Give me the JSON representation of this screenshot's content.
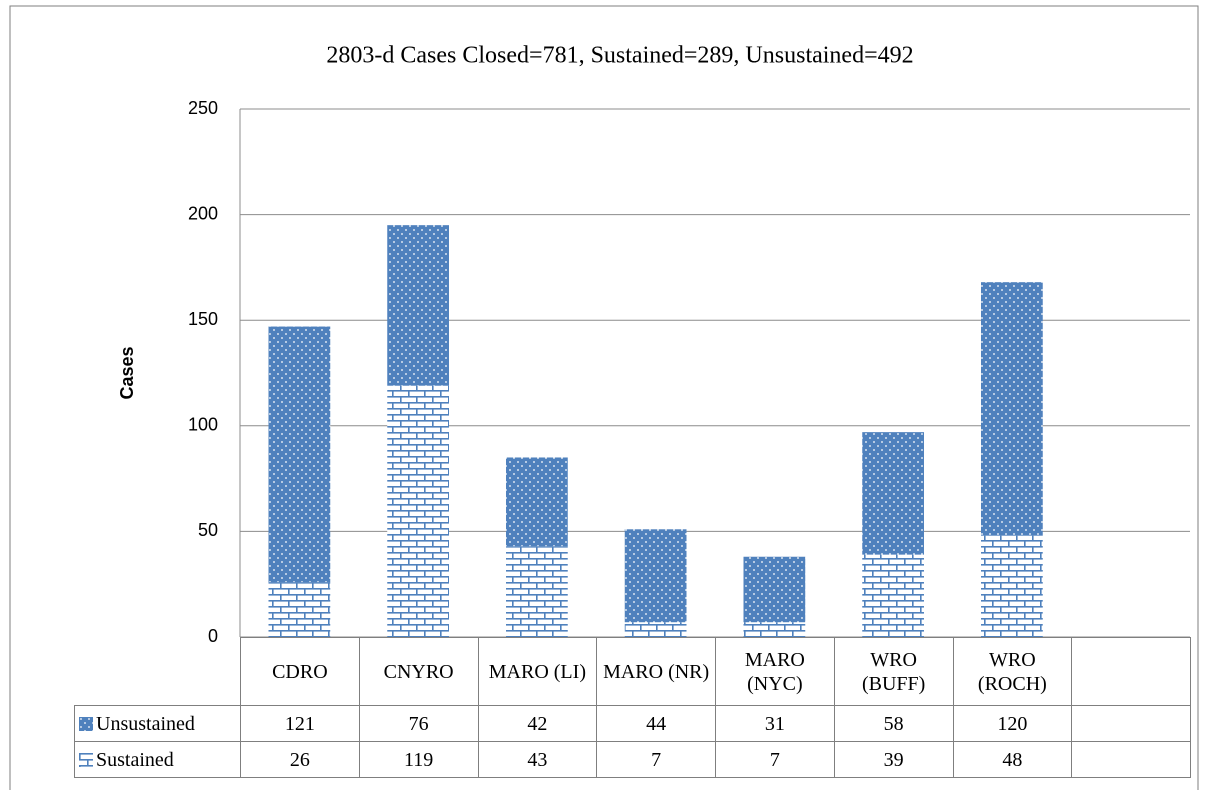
{
  "chart_data": {
    "type": "bar",
    "stacked": true,
    "title": "2803-d Cases Closed=781, Sustained=289, Unsustained=492",
    "y_label": "Cases",
    "categories": [
      "CDRO",
      "CNYRO",
      "MARO (LI)",
      "MARO (NR)",
      "MARO (NYC)",
      "WRO (BUFF)",
      "WRO (ROCH)",
      null
    ],
    "series": [
      {
        "name": "Unsustained",
        "color": "#4f81bd",
        "pattern": "dots",
        "values": [
          121,
          76,
          42,
          44,
          31,
          58,
          120,
          null
        ]
      },
      {
        "name": "Sustained",
        "color": "#4f81bd",
        "pattern": "brick",
        "values": [
          26,
          119,
          43,
          7,
          7,
          39,
          48,
          null
        ]
      }
    ],
    "ylim": [
      0,
      250
    ],
    "yticks": [
      0,
      50,
      100,
      150,
      200,
      250
    ],
    "grid": true,
    "data_table": true
  }
}
